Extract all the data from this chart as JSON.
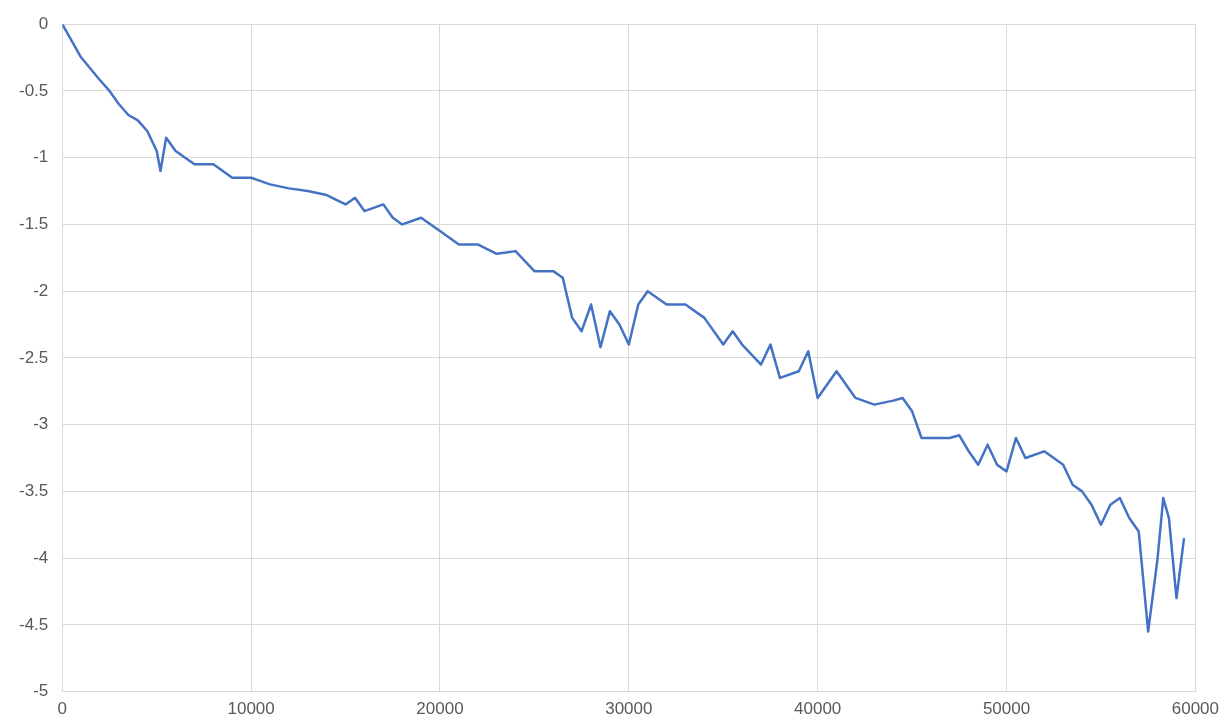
{
  "chart_data": {
    "type": "line",
    "xlim": [
      0,
      60000
    ],
    "xticks": [
      0,
      10000,
      20000,
      30000,
      40000,
      50000,
      60000
    ],
    "ylim": [
      -5,
      0
    ],
    "yticks": [
      -5,
      -4.5,
      -4,
      -3.5,
      -3,
      -2.5,
      -2,
      -1.5,
      -1,
      -0.5,
      0
    ],
    "grid": true,
    "legend": false,
    "marker": "none",
    "line_style": "solid",
    "series": [
      {
        "color": "#4472c4",
        "x": [
          0,
          1000,
          2000,
          2500,
          3000,
          3500,
          4000,
          4500,
          5000,
          5200,
          5500,
          6000,
          7000,
          8000,
          9000,
          10000,
          11000,
          12000,
          13000,
          14000,
          15000,
          15500,
          16000,
          17000,
          17500,
          18000,
          19000,
          20000,
          21000,
          22000,
          23000,
          24000,
          25000,
          26000,
          26500,
          27000,
          27500,
          28000,
          28500,
          29000,
          29500,
          30000,
          30500,
          31000,
          32000,
          33000,
          34000,
          35000,
          35500,
          36000,
          37000,
          37500,
          38000,
          39000,
          39500,
          40000,
          41000,
          42000,
          43000,
          44000,
          44500,
          45000,
          45500,
          46000,
          47000,
          47500,
          48000,
          48500,
          49000,
          49500,
          50000,
          50500,
          51000,
          52000,
          53000,
          53500,
          54000,
          54500,
          55000,
          55500,
          56000,
          56500,
          57000,
          57500,
          58000,
          58300,
          58600,
          59000,
          59400
        ],
        "values": [
          0,
          -0.25,
          -0.42,
          -0.5,
          -0.6,
          -0.68,
          -0.72,
          -0.8,
          -0.95,
          -1.1,
          -0.85,
          -0.95,
          -1.05,
          -1.05,
          -1.15,
          -1.15,
          -1.2,
          -1.23,
          -1.25,
          -1.28,
          -1.35,
          -1.3,
          -1.4,
          -1.35,
          -1.45,
          -1.5,
          -1.45,
          -1.55,
          -1.65,
          -1.65,
          -1.72,
          -1.7,
          -1.85,
          -1.85,
          -1.9,
          -2.2,
          -2.3,
          -2.1,
          -2.42,
          -2.15,
          -2.25,
          -2.4,
          -2.1,
          -2.0,
          -2.1,
          -2.1,
          -2.2,
          -2.4,
          -2.3,
          -2.4,
          -2.55,
          -2.4,
          -2.65,
          -2.6,
          -2.45,
          -2.8,
          -2.6,
          -2.8,
          -2.85,
          -2.82,
          -2.8,
          -2.9,
          -3.1,
          -3.1,
          -3.1,
          -3.08,
          -3.2,
          -3.3,
          -3.15,
          -3.3,
          -3.35,
          -3.1,
          -3.25,
          -3.2,
          -3.3,
          -3.45,
          -3.5,
          -3.6,
          -3.75,
          -3.6,
          -3.55,
          -3.7,
          -3.8,
          -4.55,
          -4.0,
          -3.55,
          -3.7,
          -4.3,
          -3.85
        ]
      }
    ]
  }
}
